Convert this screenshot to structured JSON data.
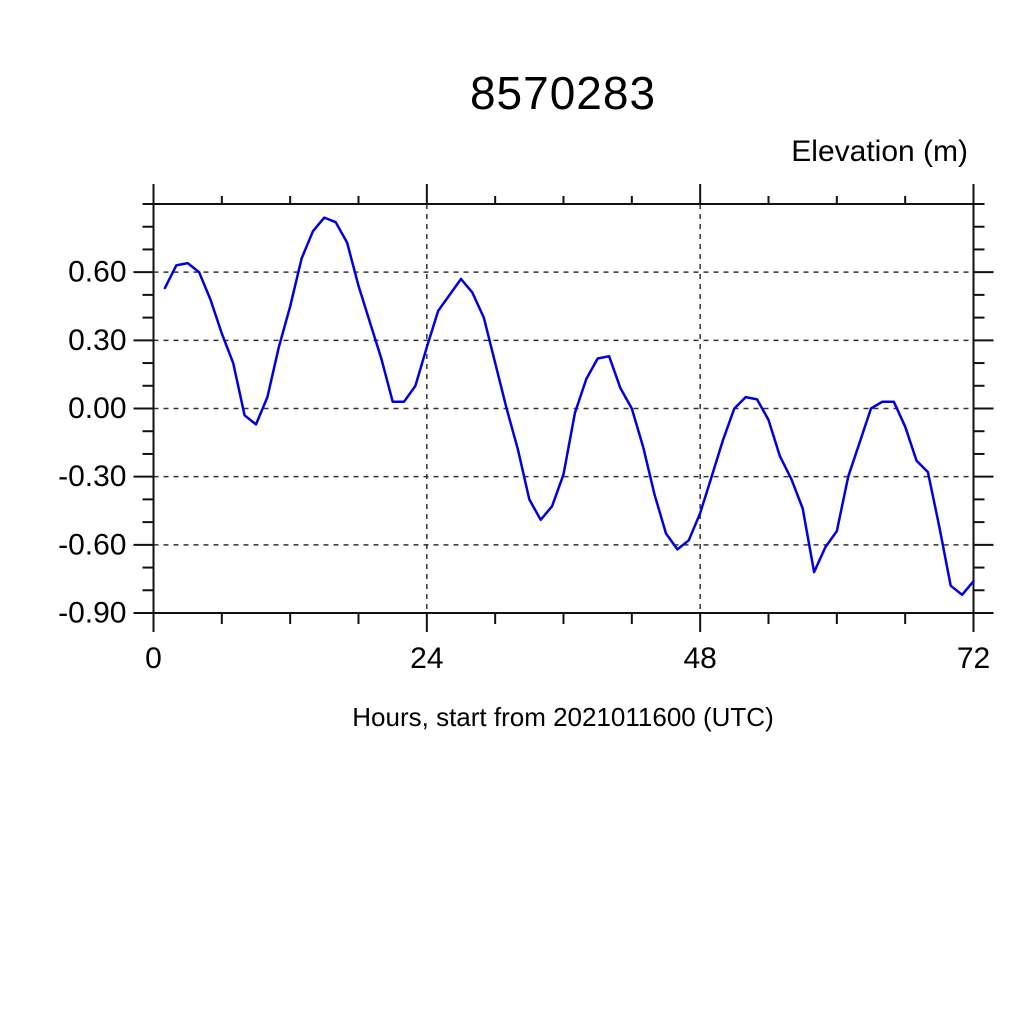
{
  "figure": {
    "title": "8570283",
    "y_axis_header": "Elevation (m)",
    "x_axis_title": "Hours, start from 2021011600 (UTC)"
  },
  "chart_data": {
    "type": "line",
    "title": "8570283",
    "top_right_label": "Elevation (m)",
    "xlabel": "Hours, start from 2021011600 (UTC)",
    "ylabel": "",
    "xlim": [
      0,
      72
    ],
    "ylim": [
      -0.9,
      0.9
    ],
    "x_major_ticks": [
      0,
      24,
      48,
      72
    ],
    "x_major_tick_labels": [
      "0",
      "24",
      "48",
      "72"
    ],
    "x_minor_tick_step": 6,
    "y_major_ticks": [
      0.6,
      0.3,
      0.0,
      -0.3,
      -0.6,
      -0.9
    ],
    "y_major_tick_labels": [
      "0.60",
      "0.30",
      "0.00",
      "-0.30",
      "-0.60",
      "-0.90"
    ],
    "y_minor_tick_step": 0.1,
    "grid": "dashed",
    "legend": "none",
    "line_color": "#0000dd",
    "series": [
      {
        "name": "elevation_m",
        "x": [
          1,
          2,
          3,
          4,
          5,
          6,
          7,
          8,
          9,
          10,
          11,
          12,
          13,
          14,
          15,
          16,
          17,
          18,
          19,
          20,
          21,
          22,
          23,
          24,
          25,
          26,
          27,
          28,
          29,
          30,
          31,
          32,
          33,
          34,
          35,
          36,
          37,
          38,
          39,
          40,
          41,
          42,
          43,
          44,
          45,
          46,
          47,
          48,
          49,
          50,
          51,
          52,
          53,
          54,
          55,
          56,
          57,
          58,
          59,
          60,
          61,
          62,
          63,
          64,
          65,
          66,
          67,
          68,
          69,
          70,
          71,
          72
        ],
        "values": [
          0.53,
          0.63,
          0.64,
          0.6,
          0.48,
          0.33,
          0.2,
          -0.03,
          -0.07,
          0.05,
          0.27,
          0.45,
          0.66,
          0.78,
          0.84,
          0.82,
          0.73,
          0.54,
          0.38,
          0.22,
          0.03,
          0.03,
          0.1,
          0.27,
          0.43,
          0.5,
          0.57,
          0.51,
          0.4,
          0.2,
          0.0,
          -0.18,
          -0.4,
          -0.49,
          -0.43,
          -0.29,
          -0.02,
          0.13,
          0.22,
          0.23,
          0.09,
          0.0,
          -0.17,
          -0.38,
          -0.55,
          -0.62,
          -0.58,
          -0.46,
          -0.3,
          -0.14,
          0.0,
          0.05,
          0.04,
          -0.05,
          -0.21,
          -0.31,
          -0.44,
          -0.72,
          -0.61,
          -0.54,
          -0.3,
          -0.15,
          0.0,
          0.03,
          0.03,
          -0.08,
          -0.23,
          -0.28,
          -0.52,
          -0.78,
          -0.82,
          -0.76
        ]
      }
    ]
  }
}
